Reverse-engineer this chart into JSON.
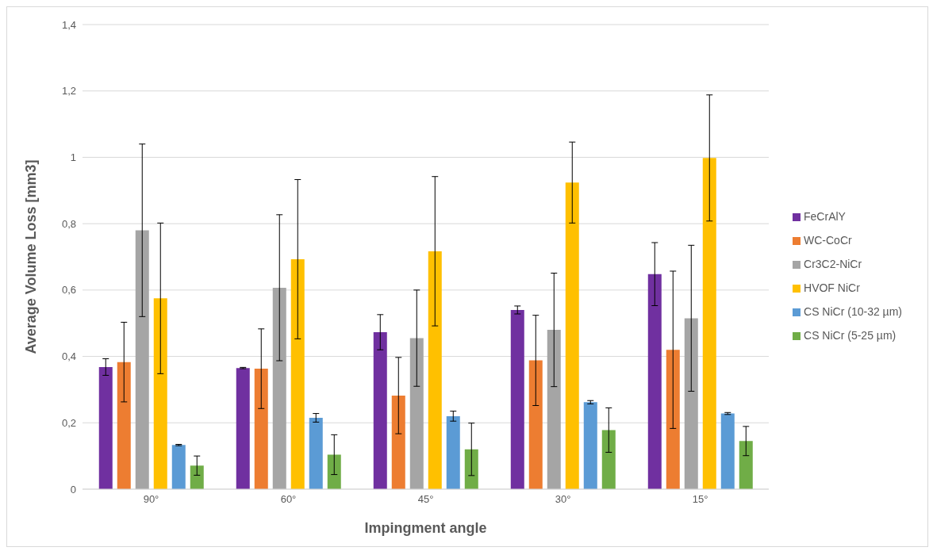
{
  "chart_data": {
    "type": "bar",
    "xlabel": "Impingment angle",
    "ylabel": "Average Volume Loss [mm3]",
    "categories": [
      "90°",
      "60°",
      "45°",
      "30°",
      "15°"
    ],
    "series": [
      {
        "name": "FeCrAlY",
        "color": "#7030a0",
        "values": [
          0.368,
          0.365,
          0.473,
          0.54,
          0.648
        ],
        "errors": [
          0.025,
          0.002,
          0.053,
          0.012,
          0.095
        ]
      },
      {
        "name": "WC-CoCr",
        "color": "#ed7d31",
        "values": [
          0.383,
          0.363,
          0.282,
          0.388,
          0.42
        ],
        "errors": [
          0.12,
          0.12,
          0.115,
          0.136,
          0.237
        ]
      },
      {
        "name": "Cr3C2-NiCr",
        "color": "#a5a5a5",
        "values": [
          0.78,
          0.607,
          0.455,
          0.48,
          0.515
        ],
        "errors": [
          0.26,
          0.22,
          0.145,
          0.171,
          0.22
        ]
      },
      {
        "name": "HVOF NiCr",
        "color": "#ffc000",
        "values": [
          0.575,
          0.693,
          0.717,
          0.924,
          0.998
        ],
        "errors": [
          0.227,
          0.24,
          0.225,
          0.122,
          0.19
        ]
      },
      {
        "name": "CS NiCr (10-32 µm)",
        "color": "#5b9bd5",
        "values": [
          0.133,
          0.215,
          0.22,
          0.262,
          0.228
        ],
        "errors": [
          0.002,
          0.013,
          0.015,
          0.005,
          0.003
        ]
      },
      {
        "name": "CS NiCr (5-25 µm)",
        "color": "#70ad47",
        "values": [
          0.071,
          0.104,
          0.12,
          0.178,
          0.145
        ],
        "errors": [
          0.029,
          0.06,
          0.079,
          0.067,
          0.044
        ]
      }
    ],
    "ylim": [
      0,
      1.4
    ],
    "yticks": [
      0,
      {
        "value": 0.2,
        "label": "0,2"
      },
      {
        "value": 0.4,
        "label": "0,4"
      },
      {
        "value": 0.6,
        "label": "0,6"
      },
      {
        "value": 0.8,
        "label": "0,8"
      },
      1,
      {
        "value": 1.2,
        "label": "1,2"
      },
      {
        "value": 1.4,
        "label": "1,4"
      }
    ],
    "grid": "y",
    "legend": "right"
  }
}
